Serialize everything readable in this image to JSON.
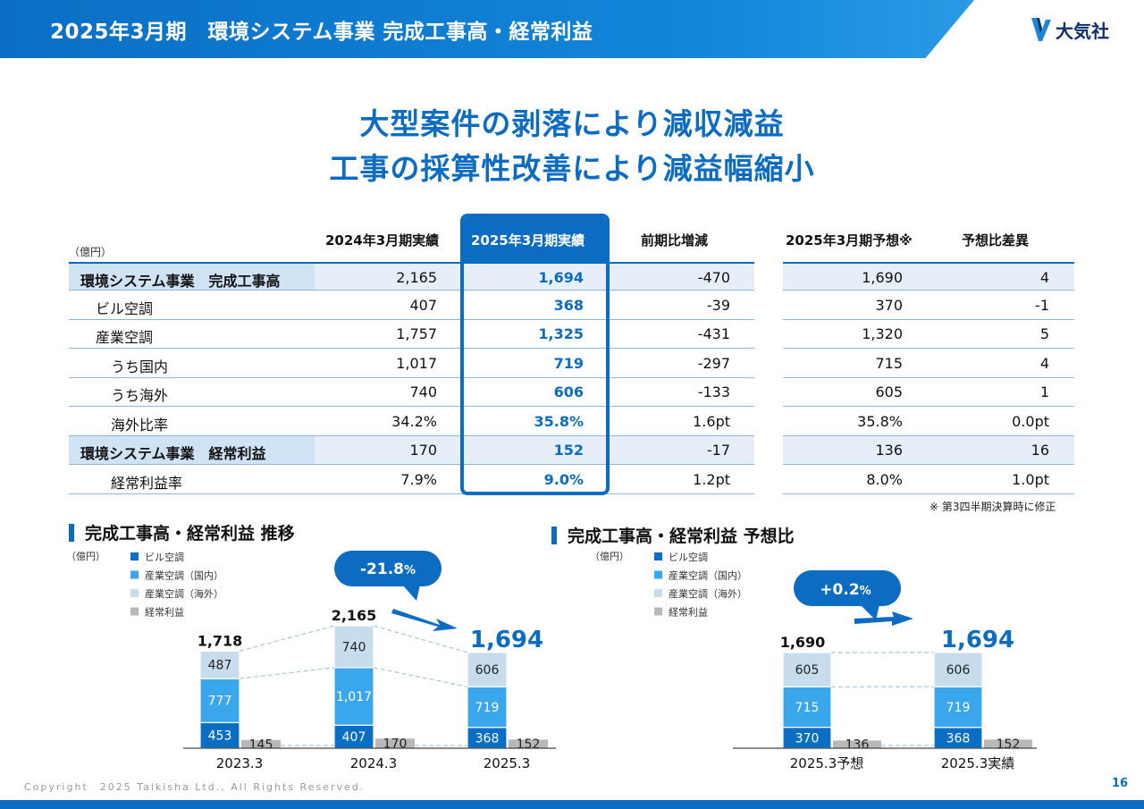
{
  "header": {
    "title": "2025年3月期　環境システム事業 完成工事高・経常利益",
    "logo_text": "大気社",
    "logo_icon": "taikisha-logo-icon"
  },
  "headline": {
    "line1": "大型案件の剥落により減収減益",
    "line2": "工事の採算性改善により減益幅縮小"
  },
  "table": {
    "unit": "（億円）",
    "columns": [
      "2024年3月期実績",
      "2025年3月期実績",
      "前期比増減",
      "2025年3月期予想※",
      "予想比差異"
    ],
    "rows": [
      {
        "label": "環境システム事業　完成工事高",
        "values": [
          "2,165",
          "1,694",
          "-470",
          "1,690",
          "4"
        ]
      },
      {
        "label": "ビル空調",
        "values": [
          "407",
          "368",
          "-39",
          "370",
          "-1"
        ]
      },
      {
        "label": "産業空調",
        "values": [
          "1,757",
          "1,325",
          "-431",
          "1,320",
          "5"
        ]
      },
      {
        "label": "うち国内",
        "values": [
          "1,017",
          "719",
          "-297",
          "715",
          "4"
        ]
      },
      {
        "label": "うち海外",
        "values": [
          "740",
          "606",
          "-133",
          "605",
          "1"
        ]
      },
      {
        "label": "海外比率",
        "values": [
          "34.2%",
          "35.8%",
          "1.6pt",
          "35.8%",
          "0.0pt"
        ]
      },
      {
        "label": "環境システム事業　経常利益",
        "values": [
          "170",
          "152",
          "-17",
          "136",
          "16"
        ]
      },
      {
        "label": "経常利益率",
        "values": [
          "7.9%",
          "9.0%",
          "1.2pt",
          "8.0%",
          "1.0pt"
        ]
      }
    ],
    "note": "※ 第3四半期決算時に修正"
  },
  "chart_data": [
    {
      "type": "bar",
      "title": "完成工事高・経常利益 推移",
      "unit": "（億円）",
      "categories": [
        "2023.3",
        "2024.3",
        "2025.3"
      ],
      "series": [
        {
          "name": "ビル空調",
          "values": [
            453,
            407,
            368
          ],
          "color": "#0a6fc4"
        },
        {
          "name": "産業空調（国内）",
          "values": [
            777,
            1017,
            719
          ],
          "color": "#3aa6ec"
        },
        {
          "name": "産業空調（海外）",
          "values": [
            487,
            740,
            606
          ],
          "color": "#c7dcec"
        },
        {
          "name": "経常利益",
          "values": [
            145,
            170,
            152
          ],
          "color": "#b8b8b8"
        }
      ],
      "totals": [
        "1,718",
        "2,165",
        "1,694"
      ],
      "annotation": {
        "text": "-21.8",
        "suffix": "%"
      }
    },
    {
      "type": "bar",
      "title": "完成工事高・経常利益 予想比",
      "unit": "（億円）",
      "categories": [
        "2025.3予想",
        "2025.3実績"
      ],
      "series": [
        {
          "name": "ビル空調",
          "values": [
            370,
            368
          ],
          "color": "#0a6fc4"
        },
        {
          "name": "産業空調（国内）",
          "values": [
            715,
            719
          ],
          "color": "#3aa6ec"
        },
        {
          "name": "産業空調（海外）",
          "values": [
            605,
            606
          ],
          "color": "#c7dcec"
        },
        {
          "name": "経常利益",
          "values": [
            136,
            152
          ],
          "color": "#b8b8b8"
        }
      ],
      "totals": [
        "1,690",
        "1,694"
      ],
      "annotation": {
        "text": "+0.2",
        "suffix": "%"
      }
    }
  ],
  "footer": {
    "copyright": "Copyright　2025 Taikisha Ltd., All Rights Reserved.",
    "page": "16"
  }
}
